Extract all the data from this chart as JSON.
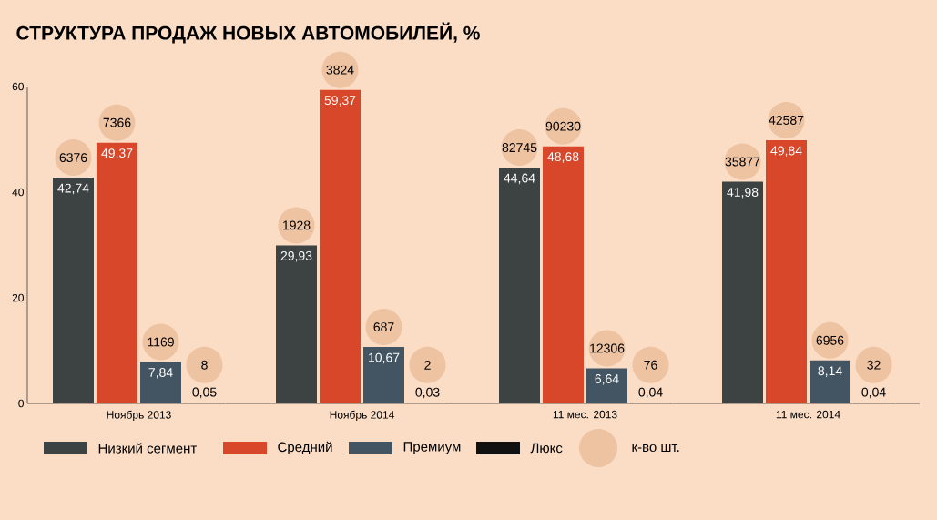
{
  "chart_data": {
    "type": "bar",
    "title": "СТРУКТУРА ПРОДАЖ НОВЫХ АВТОМОБИЛЕЙ, %",
    "categories": [
      "Ноябрь 2013",
      "Ноябрь 2014",
      "11 мес. 2013",
      "11 мес. 2014"
    ],
    "series": [
      {
        "name": "Низкий сегмент",
        "color": "#3d4242",
        "values": [
          42.74,
          29.93,
          44.64,
          41.98
        ],
        "value_labels": [
          "42,74",
          "29,93",
          "44,64",
          "41,98"
        ]
      },
      {
        "name": "Средний",
        "color": "#d9472b",
        "values": [
          49.37,
          59.37,
          48.68,
          49.84
        ],
        "value_labels": [
          "49,37",
          "59,37",
          "48,68",
          "49,84"
        ]
      },
      {
        "name": "Премиум",
        "color": "#435563",
        "values": [
          7.84,
          10.67,
          6.64,
          8.14
        ],
        "value_labels": [
          "7,84",
          "10,67",
          "6,64",
          "8,14"
        ]
      },
      {
        "name": "Люкс",
        "color": "#111111",
        "values": [
          0.05,
          0.03,
          0.04,
          0.04
        ],
        "value_labels": [
          "0,05",
          "0,03",
          "0,04",
          "0,04"
        ]
      }
    ],
    "ylim": [
      0,
      60
    ],
    "yticks": [
      0,
      20,
      40,
      60
    ],
    "legend": "bottom",
    "annotations": [
      "к-во шт.",
      "6376",
      "7366",
      "1169",
      "8",
      "1928",
      "3824",
      "687",
      "2",
      "82745",
      "90230",
      "12306",
      "76",
      "35877",
      "42587",
      "6956",
      "32"
    ]
  }
}
